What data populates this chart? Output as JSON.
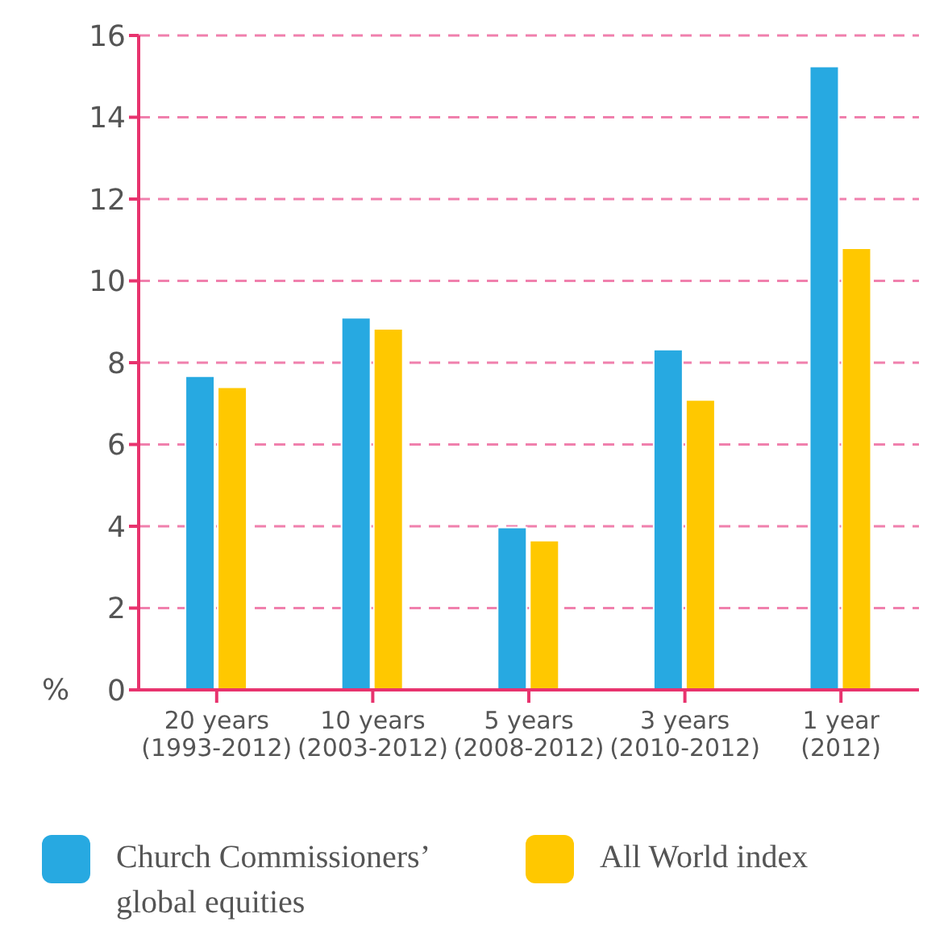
{
  "chart_data": {
    "type": "bar",
    "ylabel": "%",
    "categories": [
      "20 years\n(1993-2012)",
      "10 years\n(2003-2012)",
      "5 years\n(2008-2012)",
      "3 years\n(2010-2012)",
      "1 year\n(2012)"
    ],
    "series": [
      {
        "name": "Church Commissioners’ global equities",
        "color": "#27a9e1",
        "values": [
          7.67,
          9.1,
          3.97,
          8.32,
          15.24
        ]
      },
      {
        "name": "All World index",
        "color": "#ffc800",
        "values": [
          7.4,
          8.83,
          3.65,
          7.09,
          10.8
        ]
      }
    ],
    "ylim": [
      0,
      16
    ],
    "yticks": [
      0,
      2,
      4,
      6,
      8,
      10,
      12,
      14,
      16
    ],
    "grid": "y",
    "legend": "bottom"
  }
}
